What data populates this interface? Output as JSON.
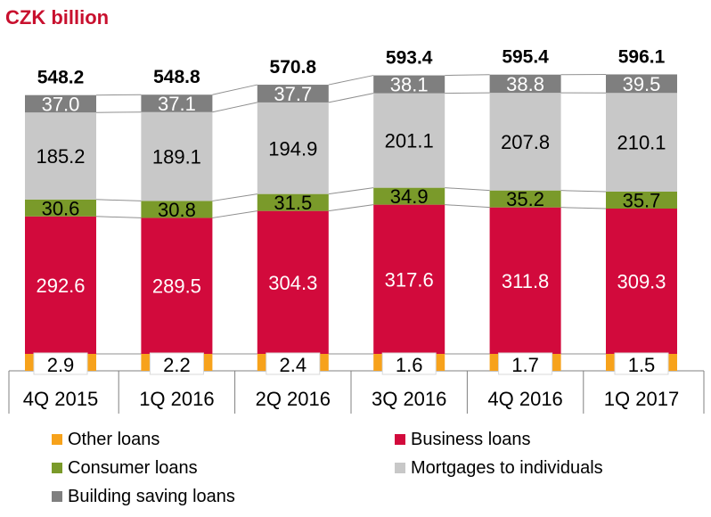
{
  "chart_data": {
    "type": "bar",
    "stacked": true,
    "title": "CZK billion",
    "categories": [
      "4Q 2015",
      "1Q 2016",
      "2Q 2016",
      "3Q 2016",
      "4Q 2016",
      "1Q 2017"
    ],
    "totals": [
      "548.2",
      "548.8",
      "570.8",
      "593.4",
      "595.4",
      "596.1"
    ],
    "series": [
      {
        "name": "Other loans",
        "color": "#f7a21b",
        "values": [
          2.9,
          2.2,
          2.4,
          1.6,
          1.7,
          1.5
        ]
      },
      {
        "name": "Business loans",
        "color": "#d20a3c",
        "values": [
          292.6,
          289.5,
          304.3,
          317.6,
          311.8,
          309.3
        ]
      },
      {
        "name": "Consumer loans",
        "color": "#7a9a2a",
        "values": [
          30.6,
          30.8,
          31.5,
          34.9,
          35.2,
          35.7
        ]
      },
      {
        "name": "Mortgages to individuals",
        "color": "#c8c8c8",
        "values": [
          185.2,
          189.1,
          194.9,
          201.1,
          207.8,
          210.1
        ]
      },
      {
        "name": "Building saving loans",
        "color": "#7f7f7f",
        "values": [
          37.0,
          37.1,
          37.7,
          38.1,
          38.8,
          39.5
        ]
      }
    ],
    "legend_position": "bottom",
    "grid": false
  }
}
